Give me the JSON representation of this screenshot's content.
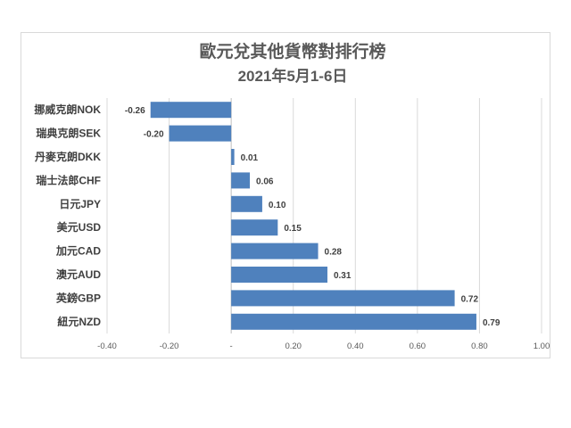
{
  "chart_data": {
    "type": "bar",
    "orientation": "horizontal",
    "title": "歐元兌其他貨幣對排行榜",
    "subtitle": "2021年5月1-6日",
    "categories": [
      "挪威克朗NOK",
      "瑞典克朗SEK",
      "丹麥克朗DKK",
      "瑞士法郎CHF",
      "日元JPY",
      "美元USD",
      "加元CAD",
      "澳元AUD",
      "英鎊GBP",
      "紐元NZD"
    ],
    "values": [
      -0.26,
      -0.2,
      0.01,
      0.06,
      0.1,
      0.15,
      0.28,
      0.31,
      0.72,
      0.79
    ],
    "value_labels": [
      "-0.26",
      "-0.20",
      "0.01",
      "0.06",
      "0.10",
      "0.15",
      "0.28",
      "0.31",
      "0.72",
      "0.79"
    ],
    "xlim": [
      -0.4,
      1.0
    ],
    "xticks": [
      -0.4,
      -0.2,
      0,
      0.2,
      0.4,
      0.6,
      0.8,
      1.0
    ],
    "xtick_labels": [
      "-0.40",
      "-0.20",
      "-",
      "0.20",
      "0.40",
      "0.60",
      "0.80",
      "1.00"
    ],
    "grid": true,
    "legend": "none",
    "bar_color": "#4f81bd"
  }
}
